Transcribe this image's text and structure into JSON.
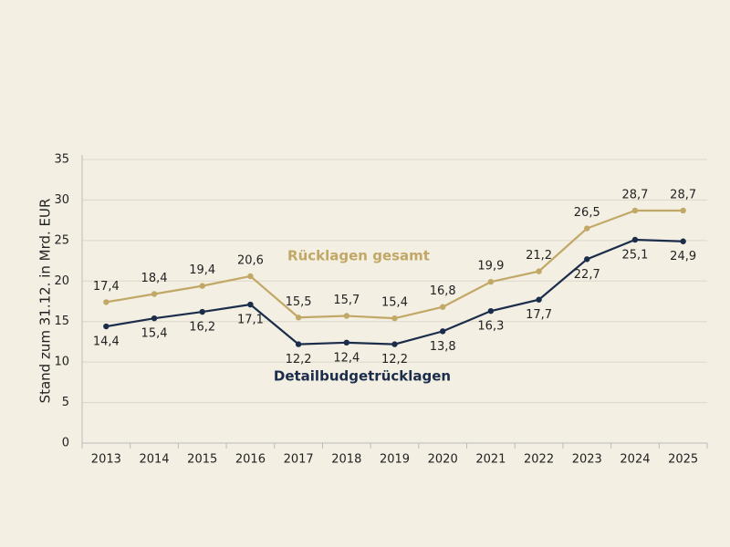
{
  "chart_data": {
    "type": "line",
    "y_label": "Stand zum 31.12. in Mrd. EUR",
    "categories": [
      "2013",
      "2014",
      "2015",
      "2016",
      "2017",
      "2018",
      "2019",
      "2020",
      "2021",
      "2022",
      "2023",
      "2024",
      "2025"
    ],
    "series": [
      {
        "name": "Rücklagen gesamt",
        "color": "#c2a866",
        "values": [
          17.4,
          18.4,
          19.4,
          20.6,
          15.5,
          15.7,
          15.4,
          16.8,
          19.9,
          21.2,
          26.5,
          28.7,
          28.7
        ],
        "value_labels": [
          "17,4",
          "18,4",
          "19,4",
          "20,6",
          "15,5",
          "15,7",
          "15,4",
          "16,8",
          "19,9",
          "21,2",
          "26,5",
          "28,7",
          "28,7"
        ]
      },
      {
        "name": "Detailbudgetrücklagen",
        "color": "#1b2d4b",
        "values": [
          14.4,
          15.4,
          16.2,
          17.1,
          12.2,
          12.4,
          12.2,
          13.8,
          16.3,
          17.7,
          22.7,
          25.1,
          24.9
        ],
        "value_labels": [
          "14,4",
          "15,4",
          "16,2",
          "17,1",
          "12,2",
          "12,4",
          "12,2",
          "13,8",
          "16,3",
          "17,7",
          "22,7",
          "25,1",
          "24,9"
        ]
      }
    ],
    "ylim": [
      0,
      35
    ],
    "yticks": [
      0,
      5,
      10,
      15,
      20,
      25,
      30,
      35
    ],
    "grid": true
  }
}
